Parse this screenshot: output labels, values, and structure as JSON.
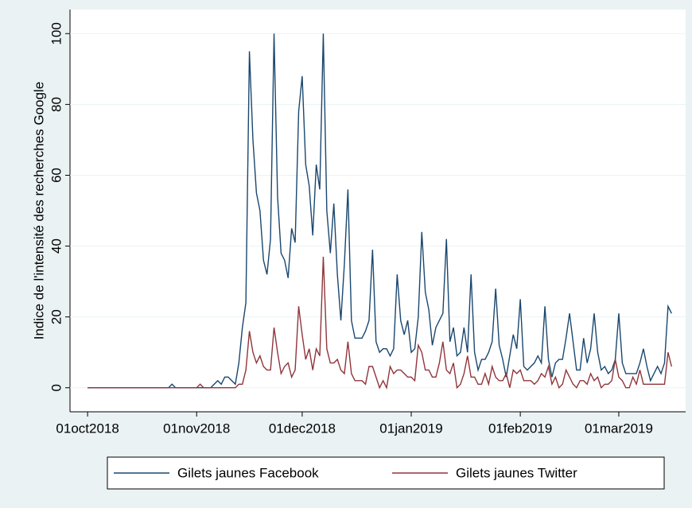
{
  "chart_data": {
    "type": "line",
    "y_label": "Indice de l'intensité des recherches Google",
    "x": [
      "2018-10-01",
      "2018-10-02",
      "2018-10-03",
      "2018-10-04",
      "2018-10-05",
      "2018-10-06",
      "2018-10-07",
      "2018-10-08",
      "2018-10-09",
      "2018-10-10",
      "2018-10-11",
      "2018-10-12",
      "2018-10-13",
      "2018-10-14",
      "2018-10-15",
      "2018-10-16",
      "2018-10-17",
      "2018-10-18",
      "2018-10-19",
      "2018-10-20",
      "2018-10-21",
      "2018-10-22",
      "2018-10-23",
      "2018-10-24",
      "2018-10-25",
      "2018-10-26",
      "2018-10-27",
      "2018-10-28",
      "2018-10-29",
      "2018-10-30",
      "2018-10-31",
      "2018-11-01",
      "2018-11-02",
      "2018-11-03",
      "2018-11-04",
      "2018-11-05",
      "2018-11-06",
      "2018-11-07",
      "2018-11-08",
      "2018-11-09",
      "2018-11-10",
      "2018-11-11",
      "2018-11-12",
      "2018-11-13",
      "2018-11-14",
      "2018-11-15",
      "2018-11-16",
      "2018-11-17",
      "2018-11-18",
      "2018-11-19",
      "2018-11-20",
      "2018-11-21",
      "2018-11-22",
      "2018-11-23",
      "2018-11-24",
      "2018-11-25",
      "2018-11-26",
      "2018-11-27",
      "2018-11-28",
      "2018-11-29",
      "2018-11-30",
      "2018-12-01",
      "2018-12-02",
      "2018-12-03",
      "2018-12-04",
      "2018-12-05",
      "2018-12-06",
      "2018-12-07",
      "2018-12-08",
      "2018-12-09",
      "2018-12-10",
      "2018-12-11",
      "2018-12-12",
      "2018-12-13",
      "2018-12-14",
      "2018-12-15",
      "2018-12-16",
      "2018-12-17",
      "2018-12-18",
      "2018-12-19",
      "2018-12-20",
      "2018-12-21",
      "2018-12-22",
      "2018-12-23",
      "2018-12-24",
      "2018-12-25",
      "2018-12-26",
      "2018-12-27",
      "2018-12-28",
      "2018-12-29",
      "2018-12-30",
      "2018-12-31",
      "2019-01-01",
      "2019-01-02",
      "2019-01-03",
      "2019-01-04",
      "2019-01-05",
      "2019-01-06",
      "2019-01-07",
      "2019-01-08",
      "2019-01-09",
      "2019-01-10",
      "2019-01-11",
      "2019-01-12",
      "2019-01-13",
      "2019-01-14",
      "2019-01-15",
      "2019-01-16",
      "2019-01-17",
      "2019-01-18",
      "2019-01-19",
      "2019-01-20",
      "2019-01-21",
      "2019-01-22",
      "2019-01-23",
      "2019-01-24",
      "2019-01-25",
      "2019-01-26",
      "2019-01-27",
      "2019-01-28",
      "2019-01-29",
      "2019-01-30",
      "2019-01-31",
      "2019-02-01",
      "2019-02-02",
      "2019-02-03",
      "2019-02-04",
      "2019-02-05",
      "2019-02-06",
      "2019-02-07",
      "2019-02-08",
      "2019-02-09",
      "2019-02-10",
      "2019-02-11",
      "2019-02-12",
      "2019-02-13",
      "2019-02-14",
      "2019-02-15",
      "2019-02-16",
      "2019-02-17",
      "2019-02-18",
      "2019-02-19",
      "2019-02-20",
      "2019-02-21",
      "2019-02-22",
      "2019-02-23",
      "2019-02-24",
      "2019-02-25",
      "2019-02-26",
      "2019-02-27",
      "2019-02-28",
      "2019-03-01",
      "2019-03-02",
      "2019-03-03",
      "2019-03-04",
      "2019-03-05",
      "2019-03-06",
      "2019-03-07",
      "2019-03-08",
      "2019-03-09",
      "2019-03-10",
      "2019-03-11",
      "2019-03-12",
      "2019-03-13",
      "2019-03-14",
      "2019-03-15",
      "2019-03-16"
    ],
    "series": [
      {
        "name": "Gilets jaunes Facebook",
        "color": "#1a476f",
        "values": [
          0,
          0,
          0,
          0,
          0,
          0,
          0,
          0,
          0,
          0,
          0,
          0,
          0,
          0,
          0,
          0,
          0,
          0,
          0,
          0,
          0,
          0,
          0,
          0,
          1,
          0,
          0,
          0,
          0,
          0,
          0,
          0,
          0,
          0,
          0,
          0,
          1,
          2,
          1,
          3,
          3,
          2,
          1,
          7,
          17,
          24,
          95,
          70,
          55,
          50,
          36,
          32,
          42,
          100,
          54,
          38,
          36,
          31,
          45,
          41,
          78,
          88,
          63,
          57,
          43,
          63,
          56,
          100,
          50,
          38,
          52,
          32,
          19,
          35,
          56,
          19,
          14,
          14,
          14,
          16,
          19,
          39,
          13,
          10,
          11,
          11,
          9,
          11,
          32,
          19,
          15,
          19,
          10,
          11,
          20,
          44,
          27,
          22,
          12,
          17,
          19,
          21,
          42,
          13,
          17,
          9,
          10,
          17,
          10,
          32,
          10,
          5,
          8,
          8,
          10,
          13,
          28,
          12,
          8,
          3,
          9,
          15,
          11,
          25,
          6,
          5,
          6,
          7,
          9,
          7,
          23,
          8,
          3,
          7,
          8,
          8,
          14,
          21,
          13,
          5,
          5,
          14,
          7,
          11,
          21,
          10,
          5,
          6,
          4,
          5,
          8,
          21,
          7,
          4,
          4,
          4,
          4,
          7,
          11,
          6,
          2,
          4,
          6,
          4,
          7,
          23,
          21
        ]
      },
      {
        "name": "Gilets jaunes Twitter",
        "color": "#90353b",
        "values": [
          0,
          0,
          0,
          0,
          0,
          0,
          0,
          0,
          0,
          0,
          0,
          0,
          0,
          0,
          0,
          0,
          0,
          0,
          0,
          0,
          0,
          0,
          0,
          0,
          0,
          0,
          0,
          0,
          0,
          0,
          0,
          0,
          1,
          0,
          0,
          0,
          0,
          0,
          0,
          0,
          0,
          0,
          0,
          1,
          1,
          5,
          16,
          10,
          7,
          9,
          6,
          5,
          5,
          17,
          10,
          4,
          6,
          7,
          3,
          5,
          23,
          15,
          8,
          11,
          5,
          11,
          9,
          37,
          11,
          7,
          7,
          8,
          5,
          4,
          13,
          4,
          2,
          2,
          2,
          1,
          6,
          6,
          3,
          0,
          2,
          0,
          6,
          4,
          5,
          5,
          4,
          3,
          3,
          2,
          12,
          10,
          5,
          5,
          3,
          3,
          7,
          13,
          5,
          4,
          7,
          0,
          1,
          4,
          9,
          3,
          3,
          1,
          1,
          4,
          1,
          6,
          3,
          2,
          2,
          4,
          0,
          5,
          4,
          5,
          2,
          2,
          2,
          1,
          2,
          4,
          3,
          6,
          1,
          3,
          0,
          1,
          5,
          3,
          1,
          0,
          2,
          2,
          1,
          4,
          2,
          3,
          0,
          1,
          1,
          2,
          8,
          3,
          2,
          0,
          0,
          3,
          1,
          5,
          1,
          1,
          1,
          1,
          1,
          1,
          1,
          10,
          6
        ]
      }
    ],
    "xlim": [
      "2018-09-26",
      "2019-03-20"
    ],
    "xticks": [
      {
        "value": "2018-10-01",
        "label": "01oct2018"
      },
      {
        "value": "2018-11-01",
        "label": "01nov2018"
      },
      {
        "value": "2018-12-01",
        "label": "01dec2018"
      },
      {
        "value": "2019-01-01",
        "label": "01jan2019"
      },
      {
        "value": "2019-02-01",
        "label": "01feb2019"
      },
      {
        "value": "2019-03-01",
        "label": "01mar2019"
      }
    ],
    "ylim": [
      -5,
      105
    ],
    "yticks": [
      0,
      20,
      40,
      60,
      80,
      100
    ],
    "grid": true,
    "legend": "bottom"
  }
}
